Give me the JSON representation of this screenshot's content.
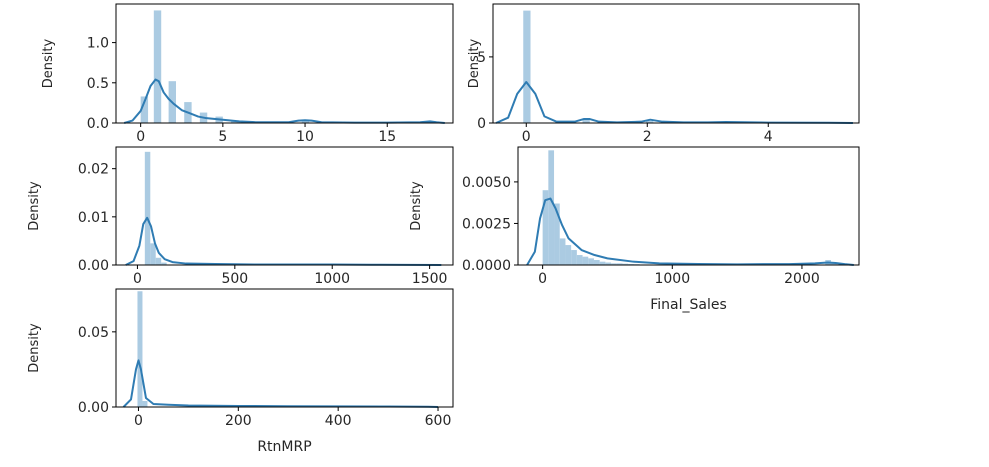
{
  "chart_data": [
    {
      "type": "histogram",
      "xlabel": "",
      "ylabel": "Density",
      "xlim": [
        -1.5,
        19.0
      ],
      "ylim": [
        0,
        1.48
      ],
      "xticks": [
        0,
        5,
        10,
        15
      ],
      "yticks": [
        0.0,
        0.5,
        1.0
      ],
      "ytick_labels": [
        "0.0",
        "0.5",
        "1.0"
      ],
      "bins": [
        {
          "x0": 0.0,
          "x1": 0.45,
          "density": 0.33
        },
        {
          "x0": 0.8,
          "x1": 1.25,
          "density": 1.4
        },
        {
          "x0": 1.7,
          "x1": 2.15,
          "density": 0.52
        },
        {
          "x0": 2.65,
          "x1": 3.1,
          "density": 0.26
        },
        {
          "x0": 3.6,
          "x1": 4.05,
          "density": 0.13
        },
        {
          "x0": 4.55,
          "x1": 5.0,
          "density": 0.08
        },
        {
          "x0": 5.5,
          "x1": 5.95,
          "density": 0.02
        },
        {
          "x0": 9.8,
          "x1": 10.25,
          "density": 0.02
        },
        {
          "x0": 17.6,
          "x1": 18.05,
          "density": 0.01
        }
      ],
      "kde": {
        "x": [
          -1.0,
          -0.5,
          0.0,
          0.3,
          0.6,
          0.9,
          1.1,
          1.4,
          1.7,
          2.0,
          2.5,
          3.0,
          3.5,
          4.0,
          5.0,
          6.0,
          7.0,
          8.0,
          9.0,
          9.6,
          10.0,
          10.4,
          11.0,
          13.0,
          15.0,
          17.0,
          17.6,
          18.0,
          18.5
        ],
        "y": [
          0.0,
          0.03,
          0.15,
          0.3,
          0.46,
          0.54,
          0.52,
          0.38,
          0.3,
          0.24,
          0.16,
          0.12,
          0.08,
          0.06,
          0.04,
          0.02,
          0.01,
          0.01,
          0.01,
          0.03,
          0.035,
          0.03,
          0.01,
          0.005,
          0.005,
          0.01,
          0.02,
          0.01,
          0.0
        ]
      }
    },
    {
      "type": "histogram",
      "xlabel": "",
      "ylabel": "Density",
      "xlim": [
        -0.55,
        5.5
      ],
      "ylim": [
        0,
        9.0
      ],
      "xticks": [
        0,
        2,
        4
      ],
      "yticks": [
        0,
        5
      ],
      "ytick_labels": [
        "0",
        "5"
      ],
      "bins": [
        {
          "x0": -0.05,
          "x1": 0.07,
          "density": 8.5
        },
        {
          "x0": 0.93,
          "x1": 1.05,
          "density": 0.35
        },
        {
          "x0": 1.98,
          "x1": 2.1,
          "density": 0.15
        }
      ],
      "kde": {
        "x": [
          -0.5,
          -0.3,
          -0.15,
          0.0,
          0.15,
          0.3,
          0.5,
          0.8,
          0.95,
          1.05,
          1.2,
          1.5,
          1.9,
          2.05,
          2.25,
          2.6,
          3.0,
          3.3,
          4.0,
          5.0,
          5.4
        ],
        "y": [
          0.0,
          0.4,
          2.2,
          3.1,
          2.2,
          0.5,
          0.1,
          0.1,
          0.3,
          0.3,
          0.1,
          0.05,
          0.1,
          0.25,
          0.1,
          0.05,
          0.05,
          0.08,
          0.03,
          0.02,
          0.0
        ]
      }
    },
    {
      "type": "histogram",
      "xlabel": "",
      "ylabel": "Density",
      "xlim": [
        -110,
        1620
      ],
      "ylim": [
        0,
        0.0245
      ],
      "xticks": [
        0,
        500,
        1000,
        1500
      ],
      "yticks": [
        0.0,
        0.01,
        0.02
      ],
      "ytick_labels": [
        "0.00",
        "0.01",
        "0.02"
      ],
      "bins": [
        {
          "x0": 38,
          "x1": 66,
          "density": 0.0235
        },
        {
          "x0": 66,
          "x1": 94,
          "density": 0.0045
        },
        {
          "x0": 94,
          "x1": 122,
          "density": 0.0015
        },
        {
          "x0": 122,
          "x1": 150,
          "density": 0.0005
        }
      ],
      "kde": {
        "x": [
          -60,
          -20,
          10,
          30,
          50,
          70,
          90,
          110,
          140,
          180,
          250,
          400,
          600,
          800,
          1000,
          1200,
          1400,
          1560
        ],
        "y": [
          0.0,
          0.0008,
          0.004,
          0.0085,
          0.0098,
          0.008,
          0.0045,
          0.0025,
          0.0012,
          0.0006,
          0.0003,
          0.0002,
          0.0001,
          0.0001,
          0.0001,
          5e-05,
          3e-05,
          0.0
        ]
      }
    },
    {
      "type": "histogram",
      "xlabel": "Final_Sales",
      "ylabel": "Density",
      "xlim": [
        -190,
        2440
      ],
      "ylim": [
        0,
        0.0071
      ],
      "xticks": [
        0,
        1000,
        2000
      ],
      "yticks": [
        0.0,
        0.0025,
        0.005
      ],
      "ytick_labels": [
        "0.0000",
        "0.0025",
        "0.0050"
      ],
      "bins": [
        {
          "x0": 0,
          "x1": 44,
          "density": 0.0045
        },
        {
          "x0": 44,
          "x1": 88,
          "density": 0.0069
        },
        {
          "x0": 88,
          "x1": 132,
          "density": 0.0037
        },
        {
          "x0": 132,
          "x1": 176,
          "density": 0.0016
        },
        {
          "x0": 176,
          "x1": 220,
          "density": 0.0012
        },
        {
          "x0": 220,
          "x1": 264,
          "density": 0.0009
        },
        {
          "x0": 264,
          "x1": 308,
          "density": 0.0006
        },
        {
          "x0": 308,
          "x1": 352,
          "density": 0.0005
        },
        {
          "x0": 352,
          "x1": 396,
          "density": 0.0004
        },
        {
          "x0": 396,
          "x1": 440,
          "density": 0.0003
        },
        {
          "x0": 440,
          "x1": 484,
          "density": 0.0002
        },
        {
          "x0": 484,
          "x1": 528,
          "density": 0.00015
        },
        {
          "x0": 528,
          "x1": 572,
          "density": 0.0001
        },
        {
          "x0": 572,
          "x1": 616,
          "density": 0.0001
        },
        {
          "x0": 616,
          "x1": 660,
          "density": 8e-05
        },
        {
          "x0": 660,
          "x1": 704,
          "density": 6e-05
        },
        {
          "x0": 704,
          "x1": 748,
          "density": 5e-05
        },
        {
          "x0": 2180,
          "x1": 2224,
          "density": 0.0003
        },
        {
          "x0": 2224,
          "x1": 2268,
          "density": 0.0001
        }
      ],
      "kde": {
        "x": [
          -120,
          -60,
          -20,
          20,
          60,
          100,
          150,
          200,
          300,
          400,
          500,
          700,
          900,
          1200,
          1500,
          1700,
          1900,
          2100,
          2200,
          2260,
          2330,
          2400
        ],
        "y": [
          0.0,
          0.0008,
          0.0028,
          0.0039,
          0.004,
          0.0034,
          0.0024,
          0.0016,
          0.0009,
          0.0006,
          0.0004,
          0.0002,
          0.0001,
          6e-05,
          4e-05,
          5e-05,
          5e-05,
          0.0001,
          0.00015,
          0.00012,
          5e-05,
          0.0
        ]
      }
    },
    {
      "type": "histogram",
      "xlabel": "RtnMRP",
      "ylabel": "Density",
      "xlim": [
        -45,
        630
      ],
      "ylim": [
        0,
        0.0785
      ],
      "xticks": [
        0,
        200,
        400,
        600
      ],
      "yticks": [
        0.0,
        0.05
      ],
      "ytick_labels": [
        "0.00",
        "0.05"
      ],
      "bins": [
        {
          "x0": -2,
          "x1": 8,
          "density": 0.077
        },
        {
          "x0": 8,
          "x1": 18,
          "density": 0.004
        }
      ],
      "kde": {
        "x": [
          -30,
          -15,
          -5,
          0,
          5,
          15,
          30,
          60,
          100,
          200,
          300,
          400,
          500,
          580,
          600
        ],
        "y": [
          0.0,
          0.005,
          0.025,
          0.031,
          0.025,
          0.006,
          0.002,
          0.0015,
          0.001,
          0.0007,
          0.0005,
          0.0004,
          0.0003,
          0.0002,
          0.0
        ]
      }
    }
  ],
  "colors": {
    "bar": "#a6c8e0",
    "kde": "#2f7cb3",
    "axis": "#000000",
    "text": "#262626"
  }
}
